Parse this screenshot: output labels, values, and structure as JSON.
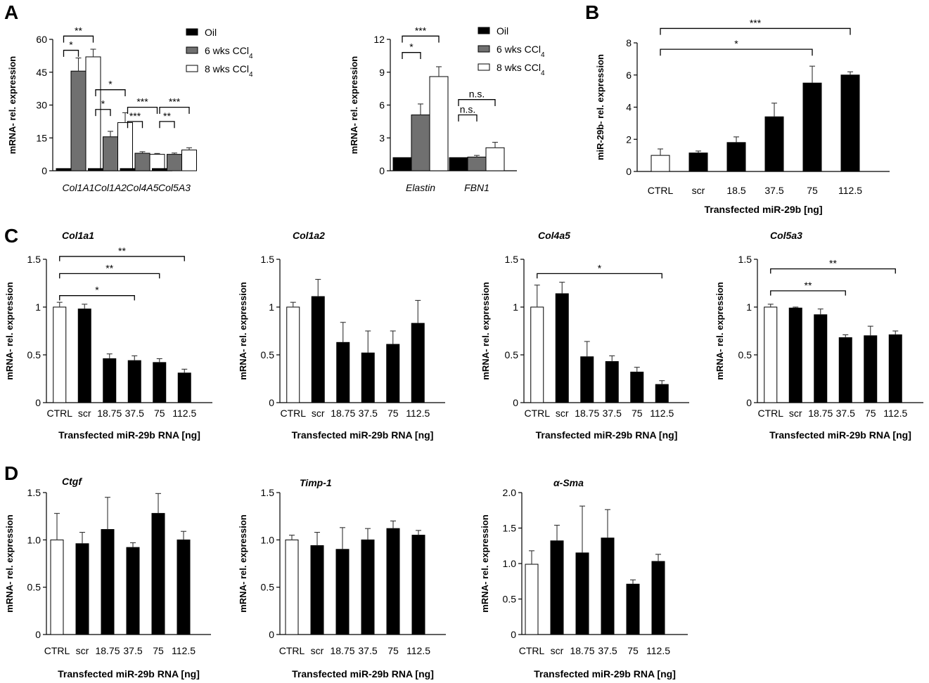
{
  "panel_letters": [
    "A",
    "B",
    "C",
    "D"
  ],
  "chart_data": [
    {
      "id": "A1",
      "type": "bar",
      "panel": "A",
      "categories": [
        "Col1A1",
        "Col1A2",
        "Col4A5",
        "Col5A3"
      ],
      "categories_italic": true,
      "series": [
        {
          "name": "Oil",
          "values": [
            1,
            1,
            1,
            1
          ],
          "errors": [
            0,
            0,
            0,
            0
          ],
          "color": "#000000"
        },
        {
          "name": "6 wks CCl4",
          "values": [
            45.5,
            15.5,
            8,
            7.5
          ],
          "errors": [
            6,
            2.5,
            0.7,
            0.6
          ],
          "color": "#707070"
        },
        {
          "name": "8 wks CCl4",
          "values": [
            52,
            22,
            7.5,
            9.5
          ],
          "errors": [
            3.5,
            4.5,
            0.4,
            1
          ],
          "color": "#ffffff"
        }
      ],
      "ylabel": "mRNA- rel. expression",
      "ylim": [
        0,
        60
      ],
      "yticks": [
        "0",
        "15",
        "30",
        "45",
        "60"
      ],
      "legend": "top-right",
      "legend_labels": [
        {
          "main": "Oil",
          "sub": "",
          "tail": ""
        },
        {
          "main": "6 wks CCl",
          "sub": "4",
          "tail": ""
        },
        {
          "main": "8 wks CCl",
          "sub": "4",
          "tail": ""
        }
      ],
      "annotations": [
        {
          "text": "*",
          "cat": 0,
          "from": 0,
          "to": 1,
          "y": 55,
          "tick": 3
        },
        {
          "text": "**",
          "cat": 0,
          "from": 0,
          "to": 2,
          "y": 61.5,
          "tick": 3
        },
        {
          "text": "*",
          "cat": 1,
          "from": 0,
          "to": 1,
          "y": 28,
          "tick": 3
        },
        {
          "text": "*",
          "cat": 1,
          "from": 0,
          "to": 2,
          "y": 37,
          "tick": 3
        },
        {
          "text": "***",
          "cat": 2,
          "from": 0,
          "to": 1,
          "y": 22.5,
          "tick": 3
        },
        {
          "text": "***",
          "cat": 2,
          "from": 0,
          "to": 2,
          "y": 29,
          "tick": 3
        },
        {
          "text": "**",
          "cat": 3,
          "from": 0,
          "to": 1,
          "y": 22.5,
          "tick": 3
        },
        {
          "text": "***",
          "cat": 3,
          "from": 0,
          "to": 2,
          "y": 29,
          "tick": 3
        }
      ]
    },
    {
      "id": "A2",
      "type": "bar",
      "panel": "A",
      "categories": [
        "Elastin",
        "FBN1"
      ],
      "categories_italic": true,
      "series": [
        {
          "name": "Oil",
          "values": [
            1.2,
            1.2
          ],
          "errors": [
            0,
            0
          ],
          "color": "#000000"
        },
        {
          "name": "6 wks CCl4",
          "values": [
            5.1,
            1.25
          ],
          "errors": [
            1,
            0.15
          ],
          "color": "#707070"
        },
        {
          "name": "8 wks CCl4",
          "values": [
            8.6,
            2.1
          ],
          "errors": [
            0.9,
            0.5
          ],
          "color": "#ffffff"
        }
      ],
      "ylabel": "mRNA- rel. expression",
      "ylim": [
        0,
        12
      ],
      "yticks": [
        "0",
        "3",
        "6",
        "9",
        "12"
      ],
      "legend": "top-right",
      "legend_labels": [
        {
          "main": "Oil",
          "sub": "",
          "tail": ""
        },
        {
          "main": "6 wks CCl",
          "sub": "4",
          "tail": ""
        },
        {
          "main": "8 wks CCl",
          "sub": "4",
          "tail": ""
        }
      ],
      "annotations": [
        {
          "text": "*",
          "cat": 0,
          "from": 0,
          "to": 1,
          "y": 10.8,
          "tick": 0.6
        },
        {
          "text": "***",
          "cat": 0,
          "from": 0,
          "to": 2,
          "y": 12.3,
          "tick": 0.6
        },
        {
          "text": "n.s.",
          "cat": 1,
          "from": 0,
          "to": 1,
          "y": 5.1,
          "tick": 0.6
        },
        {
          "text": "n.s.",
          "cat": 1,
          "from": 0,
          "to": 2,
          "y": 6.5,
          "tick": 0.6
        }
      ]
    },
    {
      "id": "B",
      "type": "bar",
      "panel": "B",
      "categories": [
        "CTRL",
        "scr",
        "18.5",
        "37.5",
        "75",
        "112.5"
      ],
      "values": [
        1,
        1.15,
        1.8,
        3.4,
        5.5,
        6
      ],
      "errors": [
        0.4,
        0.12,
        0.35,
        0.85,
        1.05,
        0.2
      ],
      "open_bars": [
        0
      ],
      "ylabel": "miR-29b- rel. expression",
      "xlabel": "Transfected miR-29b [ng]",
      "ylim": [
        0,
        8
      ],
      "yticks": [
        "0",
        "2",
        "4",
        "6",
        "8"
      ],
      "annotations": [
        {
          "text": "*",
          "from": 0,
          "to": 4,
          "y": 7.6,
          "tick": 0.4
        },
        {
          "text": "***",
          "from": 0,
          "to": 5,
          "y": 8.9,
          "tick": 0.4
        }
      ]
    },
    {
      "id": "C1",
      "type": "bar",
      "panel": "C",
      "title": "Col1a1",
      "categories": [
        "CTRL",
        "scr",
        "18.75",
        "37.5",
        "75",
        "112.5"
      ],
      "values": [
        1,
        0.98,
        0.46,
        0.44,
        0.42,
        0.31
      ],
      "errors": [
        0.05,
        0.05,
        0.05,
        0.05,
        0.04,
        0.04
      ],
      "open_bars": [
        0
      ],
      "ylabel": "mRNA- rel. expression",
      "xlabel": "Transfected miR-29b RNA [ng]",
      "ylim": [
        0,
        1.5
      ],
      "yticks": [
        "0",
        "0.5",
        "1",
        "1.5"
      ],
      "annotations": [
        {
          "text": "*",
          "from": 0,
          "to": 3,
          "y": 1.12,
          "tick": 0.05
        },
        {
          "text": "**",
          "from": 0,
          "to": 4,
          "y": 1.35,
          "tick": 0.05
        },
        {
          "text": "**",
          "from": 0,
          "to": 5,
          "y": 1.53,
          "tick": 0.05
        }
      ]
    },
    {
      "id": "C2",
      "type": "bar",
      "panel": "C",
      "title": "Col1a2",
      "categories": [
        "CTRL",
        "scr",
        "18.75",
        "37.5",
        "75",
        "112.5"
      ],
      "values": [
        1,
        1.11,
        0.63,
        0.52,
        0.61,
        0.83
      ],
      "errors": [
        0.05,
        0.18,
        0.21,
        0.23,
        0.14,
        0.24
      ],
      "open_bars": [
        0
      ],
      "ylabel": "mRNA- rel. expression",
      "xlabel": "Transfected miR-29b RNA [ng]",
      "ylim": [
        0,
        1.5
      ],
      "yticks": [
        "0",
        "0.5",
        "1",
        "1.5"
      ],
      "annotations": []
    },
    {
      "id": "C3",
      "type": "bar",
      "panel": "C",
      "title": "Col4a5",
      "categories": [
        "CTRL",
        "scr",
        "18.75",
        "37.5",
        "75",
        "112.5"
      ],
      "values": [
        1,
        1.14,
        0.48,
        0.43,
        0.32,
        0.19
      ],
      "errors": [
        0.23,
        0.12,
        0.16,
        0.06,
        0.05,
        0.04
      ],
      "open_bars": [
        0
      ],
      "ylabel": "mRNA- rel. expression",
      "xlabel": "Transfected miR-29b RNA [ng]",
      "ylim": [
        0,
        1.5
      ],
      "yticks": [
        "0",
        "0.5",
        "1",
        "1.5"
      ],
      "annotations": [
        {
          "text": "*",
          "from": 0,
          "to": 5,
          "y": 1.35,
          "tick": 0.05
        }
      ]
    },
    {
      "id": "C4",
      "type": "bar",
      "panel": "C",
      "title": "Col5a3",
      "categories": [
        "CTRL",
        "scr",
        "18.75",
        "37.5",
        "75",
        "112.5"
      ],
      "values": [
        1,
        0.99,
        0.92,
        0.68,
        0.7,
        0.71
      ],
      "errors": [
        0.03,
        0.01,
        0.06,
        0.03,
        0.1,
        0.04
      ],
      "open_bars": [
        0
      ],
      "ylabel": "mRNA- rel. expression",
      "xlabel": "Transfected miR-29b RNA [ng]",
      "ylim": [
        0,
        1.5
      ],
      "yticks": [
        "0",
        "0.5",
        "1",
        "1.5"
      ],
      "annotations": [
        {
          "text": "**",
          "from": 0,
          "to": 3,
          "y": 1.17,
          "tick": 0.05
        },
        {
          "text": "**",
          "from": 0,
          "to": 5,
          "y": 1.4,
          "tick": 0.05
        }
      ]
    },
    {
      "id": "D1",
      "type": "bar",
      "panel": "D",
      "title": "Ctgf",
      "categories": [
        "CTRL",
        "scr",
        "18.75",
        "37.5",
        "75",
        "112.5"
      ],
      "values": [
        1,
        0.96,
        1.11,
        0.92,
        1.28,
        1
      ],
      "errors": [
        0.28,
        0.12,
        0.34,
        0.05,
        0.21,
        0.09
      ],
      "open_bars": [
        0
      ],
      "ylabel": "mRNA- rel. expression",
      "xlabel": "Transfected miR-29b RNA [ng]",
      "ylim": [
        0,
        1.5
      ],
      "yticks": [
        "0",
        "0.5",
        "1.0",
        "1.5"
      ],
      "annotations": []
    },
    {
      "id": "D2",
      "type": "bar",
      "panel": "D",
      "title": "Timp-1",
      "categories": [
        "CTRL",
        "scr",
        "18.75",
        "37.5",
        "75",
        "112.5"
      ],
      "values": [
        1,
        0.94,
        0.9,
        1,
        1.12,
        1.05
      ],
      "errors": [
        0.05,
        0.14,
        0.23,
        0.12,
        0.08,
        0.05
      ],
      "open_bars": [
        0
      ],
      "ylabel": "mRNA- rel. expression",
      "xlabel": "Transfected miR-29b RNA [ng]",
      "ylim": [
        0,
        1.5
      ],
      "yticks": [
        "0",
        "0.5",
        "1.0",
        "1.5"
      ],
      "annotations": []
    },
    {
      "id": "D3",
      "type": "bar",
      "panel": "D",
      "title": "α-Sma",
      "categories": [
        "CTRL",
        "scr",
        "18.75",
        "37.5",
        "75",
        "112.5"
      ],
      "values": [
        0.99,
        1.32,
        1.15,
        1.36,
        0.71,
        1.03
      ],
      "errors": [
        0.19,
        0.22,
        0.66,
        0.4,
        0.06,
        0.1
      ],
      "open_bars": [
        0
      ],
      "ylabel": "mRNA- rel. expression",
      "xlabel": "Transfected miR-29b RNA [ng]",
      "ylim": [
        0,
        2
      ],
      "yticks": [
        "0",
        "0.5",
        "1.0",
        "1.5",
        "2.0"
      ],
      "annotations": []
    }
  ]
}
